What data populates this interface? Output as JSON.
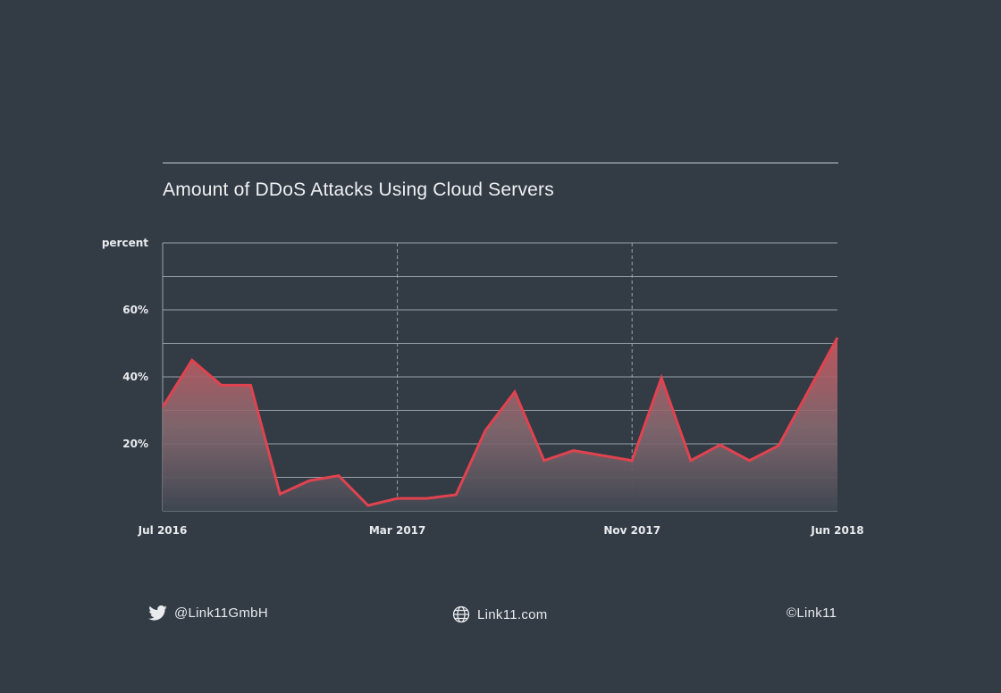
{
  "chart_data": {
    "type": "area",
    "title": "Amount of DDoS Attacks Using Cloud Servers",
    "ylabel": "percent",
    "xlabel": "",
    "ylim": [
      0,
      80
    ],
    "yticks": [
      20,
      40,
      60
    ],
    "ytick_labels": [
      "20%",
      "40%",
      "60%"
    ],
    "grid": true,
    "x": [
      "Jul 2016",
      "Aug 2016",
      "Sep 2016",
      "Oct 2016",
      "Nov 2016",
      "Dec 2016",
      "Jan 2017",
      "Feb 2017",
      "Mar 2017",
      "Apr 2017",
      "May 2017",
      "Jun 2017",
      "Jul 2017",
      "Aug 2017",
      "Sep 2017",
      "Oct 2017",
      "Nov 2017",
      "Dec 2017",
      "Jan 2018",
      "Feb 2018",
      "Mar 2018",
      "Apr 2018",
      "May 2018",
      "Jun 2018"
    ],
    "xtick_labels": [
      "Jul 2016",
      "Mar 2017",
      "Nov 2017",
      "Jun 2018"
    ],
    "values": [
      31,
      45,
      37.5,
      37.5,
      5,
      9,
      10.5,
      1.6,
      3.7,
      3.7,
      4.8,
      24,
      35.5,
      15,
      18,
      16.5,
      15,
      39.7,
      15,
      19.7,
      15,
      19.5,
      35.6,
      51.7
    ],
    "colors": {
      "line": "#e0434f",
      "fill_top": "#c9525a",
      "background": "#333b45",
      "grid": "#9aa1a9"
    }
  },
  "footer": {
    "twitter": "@Link11GmbH",
    "website": "Link11.com",
    "copyright": "©Link11"
  }
}
